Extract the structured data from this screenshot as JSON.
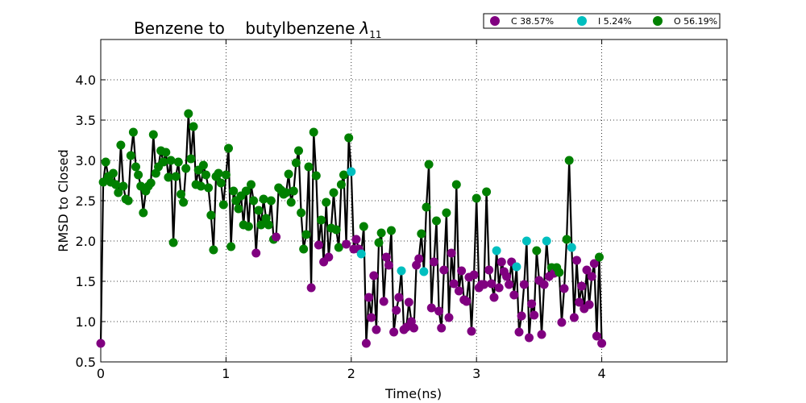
{
  "chart_data": {
    "type": "scatter",
    "title": "Benzene to    butylbenzene",
    "title_symbol": "λ",
    "title_subscript": "11",
    "xlabel": "Time(ns)",
    "ylabel": "RMSD to Closed",
    "xlim": [
      0,
      5
    ],
    "ylim": [
      0.5,
      4.5
    ],
    "xticks": [
      0,
      1,
      2,
      3,
      4
    ],
    "xtick_labels": [
      "0",
      "1",
      "2",
      "3",
      "4"
    ],
    "yticks": [
      0.5,
      1.0,
      1.5,
      2.0,
      2.5,
      3.0,
      3.5,
      4.0
    ],
    "ytick_labels": [
      "0.5",
      "1.0",
      "1.5",
      "2.0",
      "2.5",
      "3.0",
      "3.5",
      "4.0"
    ],
    "grid": true,
    "legend_position": "top-right",
    "line_color": "#000000",
    "categories": [
      {
        "key": "C",
        "label": "C 38.57%",
        "color": "#800080"
      },
      {
        "key": "I",
        "label": "I 5.24%",
        "color": "#00bfbf"
      },
      {
        "key": "O",
        "label": "O 56.19%",
        "color": "#008000"
      }
    ],
    "points": [
      {
        "x": 0.0,
        "y": 0.73,
        "c": "C"
      },
      {
        "x": 0.02,
        "y": 2.73,
        "c": "O"
      },
      {
        "x": 0.04,
        "y": 2.98,
        "c": "O"
      },
      {
        "x": 0.06,
        "y": 2.8,
        "c": "O"
      },
      {
        "x": 0.08,
        "y": 2.73,
        "c": "O"
      },
      {
        "x": 0.1,
        "y": 2.84,
        "c": "O"
      },
      {
        "x": 0.12,
        "y": 2.7,
        "c": "O"
      },
      {
        "x": 0.14,
        "y": 2.6,
        "c": "O"
      },
      {
        "x": 0.16,
        "y": 3.19,
        "c": "O"
      },
      {
        "x": 0.18,
        "y": 2.68,
        "c": "O"
      },
      {
        "x": 0.2,
        "y": 2.52,
        "c": "O"
      },
      {
        "x": 0.22,
        "y": 2.5,
        "c": "O"
      },
      {
        "x": 0.24,
        "y": 3.06,
        "c": "O"
      },
      {
        "x": 0.26,
        "y": 3.35,
        "c": "O"
      },
      {
        "x": 0.28,
        "y": 2.92,
        "c": "O"
      },
      {
        "x": 0.3,
        "y": 2.82,
        "c": "O"
      },
      {
        "x": 0.32,
        "y": 2.68,
        "c": "O"
      },
      {
        "x": 0.34,
        "y": 2.35,
        "c": "O"
      },
      {
        "x": 0.36,
        "y": 2.62,
        "c": "O"
      },
      {
        "x": 0.38,
        "y": 2.68,
        "c": "O"
      },
      {
        "x": 0.4,
        "y": 2.72,
        "c": "O"
      },
      {
        "x": 0.42,
        "y": 3.32,
        "c": "O"
      },
      {
        "x": 0.44,
        "y": 2.84,
        "c": "O"
      },
      {
        "x": 0.46,
        "y": 2.92,
        "c": "O"
      },
      {
        "x": 0.48,
        "y": 3.12,
        "c": "O"
      },
      {
        "x": 0.5,
        "y": 2.98,
        "c": "O"
      },
      {
        "x": 0.52,
        "y": 3.1,
        "c": "O"
      },
      {
        "x": 0.54,
        "y": 2.79,
        "c": "O"
      },
      {
        "x": 0.56,
        "y": 3.0,
        "c": "O"
      },
      {
        "x": 0.58,
        "y": 1.98,
        "c": "O"
      },
      {
        "x": 0.6,
        "y": 2.8,
        "c": "O"
      },
      {
        "x": 0.62,
        "y": 2.98,
        "c": "O"
      },
      {
        "x": 0.64,
        "y": 2.58,
        "c": "O"
      },
      {
        "x": 0.66,
        "y": 2.48,
        "c": "O"
      },
      {
        "x": 0.68,
        "y": 2.9,
        "c": "O"
      },
      {
        "x": 0.7,
        "y": 3.58,
        "c": "O"
      },
      {
        "x": 0.72,
        "y": 3.02,
        "c": "O"
      },
      {
        "x": 0.74,
        "y": 3.42,
        "c": "O"
      },
      {
        "x": 0.76,
        "y": 2.7,
        "c": "O"
      },
      {
        "x": 0.78,
        "y": 2.88,
        "c": "O"
      },
      {
        "x": 0.8,
        "y": 2.68,
        "c": "O"
      },
      {
        "x": 0.82,
        "y": 2.94,
        "c": "O"
      },
      {
        "x": 0.84,
        "y": 2.82,
        "c": "O"
      },
      {
        "x": 0.86,
        "y": 2.66,
        "c": "O"
      },
      {
        "x": 0.88,
        "y": 2.32,
        "c": "O"
      },
      {
        "x": 0.9,
        "y": 1.89,
        "c": "O"
      },
      {
        "x": 0.92,
        "y": 2.8,
        "c": "O"
      },
      {
        "x": 0.94,
        "y": 2.84,
        "c": "O"
      },
      {
        "x": 0.96,
        "y": 2.72,
        "c": "O"
      },
      {
        "x": 0.98,
        "y": 2.45,
        "c": "O"
      },
      {
        "x": 1.0,
        "y": 2.82,
        "c": "O"
      },
      {
        "x": 1.02,
        "y": 3.15,
        "c": "O"
      },
      {
        "x": 1.04,
        "y": 1.93,
        "c": "O"
      },
      {
        "x": 1.06,
        "y": 2.62,
        "c": "O"
      },
      {
        "x": 1.08,
        "y": 2.5,
        "c": "O"
      },
      {
        "x": 1.1,
        "y": 2.4,
        "c": "O"
      },
      {
        "x": 1.12,
        "y": 2.56,
        "c": "O"
      },
      {
        "x": 1.14,
        "y": 2.2,
        "c": "O"
      },
      {
        "x": 1.16,
        "y": 2.62,
        "c": "O"
      },
      {
        "x": 1.18,
        "y": 2.18,
        "c": "O"
      },
      {
        "x": 1.2,
        "y": 2.7,
        "c": "O"
      },
      {
        "x": 1.22,
        "y": 2.5,
        "c": "O"
      },
      {
        "x": 1.24,
        "y": 1.85,
        "c": "C"
      },
      {
        "x": 1.26,
        "y": 2.38,
        "c": "O"
      },
      {
        "x": 1.28,
        "y": 2.2,
        "c": "O"
      },
      {
        "x": 1.3,
        "y": 2.52,
        "c": "O"
      },
      {
        "x": 1.32,
        "y": 2.28,
        "c": "O"
      },
      {
        "x": 1.34,
        "y": 2.2,
        "c": "O"
      },
      {
        "x": 1.36,
        "y": 2.5,
        "c": "O"
      },
      {
        "x": 1.38,
        "y": 2.02,
        "c": "O"
      },
      {
        "x": 1.4,
        "y": 2.05,
        "c": "C"
      },
      {
        "x": 1.42,
        "y": 2.66,
        "c": "O"
      },
      {
        "x": 1.44,
        "y": 2.63,
        "c": "O"
      },
      {
        "x": 1.46,
        "y": 2.58,
        "c": "O"
      },
      {
        "x": 1.48,
        "y": 2.6,
        "c": "O"
      },
      {
        "x": 1.5,
        "y": 2.83,
        "c": "O"
      },
      {
        "x": 1.52,
        "y": 2.48,
        "c": "O"
      },
      {
        "x": 1.54,
        "y": 2.62,
        "c": "O"
      },
      {
        "x": 1.56,
        "y": 2.97,
        "c": "O"
      },
      {
        "x": 1.58,
        "y": 3.12,
        "c": "O"
      },
      {
        "x": 1.6,
        "y": 2.35,
        "c": "O"
      },
      {
        "x": 1.62,
        "y": 1.9,
        "c": "O"
      },
      {
        "x": 1.64,
        "y": 2.08,
        "c": "O"
      },
      {
        "x": 1.66,
        "y": 2.92,
        "c": "O"
      },
      {
        "x": 1.68,
        "y": 1.42,
        "c": "C"
      },
      {
        "x": 1.7,
        "y": 3.35,
        "c": "O"
      },
      {
        "x": 1.72,
        "y": 2.81,
        "c": "O"
      },
      {
        "x": 1.74,
        "y": 1.95,
        "c": "C"
      },
      {
        "x": 1.76,
        "y": 2.26,
        "c": "O"
      },
      {
        "x": 1.78,
        "y": 1.74,
        "c": "C"
      },
      {
        "x": 1.8,
        "y": 2.48,
        "c": "O"
      },
      {
        "x": 1.82,
        "y": 1.8,
        "c": "C"
      },
      {
        "x": 1.84,
        "y": 2.16,
        "c": "O"
      },
      {
        "x": 1.86,
        "y": 2.6,
        "c": "O"
      },
      {
        "x": 1.88,
        "y": 2.14,
        "c": "O"
      },
      {
        "x": 1.9,
        "y": 1.92,
        "c": "O"
      },
      {
        "x": 1.92,
        "y": 2.7,
        "c": "O"
      },
      {
        "x": 1.94,
        "y": 2.82,
        "c": "O"
      },
      {
        "x": 1.96,
        "y": 1.96,
        "c": "C"
      },
      {
        "x": 1.98,
        "y": 3.28,
        "c": "O"
      },
      {
        "x": 2.0,
        "y": 2.86,
        "c": "I"
      },
      {
        "x": 2.02,
        "y": 1.9,
        "c": "C"
      },
      {
        "x": 2.04,
        "y": 2.02,
        "c": "C"
      },
      {
        "x": 2.06,
        "y": 1.9,
        "c": "C"
      },
      {
        "x": 2.08,
        "y": 1.84,
        "c": "I"
      },
      {
        "x": 2.1,
        "y": 2.18,
        "c": "O"
      },
      {
        "x": 2.12,
        "y": 0.73,
        "c": "C"
      },
      {
        "x": 2.14,
        "y": 1.3,
        "c": "C"
      },
      {
        "x": 2.16,
        "y": 1.05,
        "c": "C"
      },
      {
        "x": 2.18,
        "y": 1.57,
        "c": "C"
      },
      {
        "x": 2.2,
        "y": 0.9,
        "c": "C"
      },
      {
        "x": 2.22,
        "y": 1.98,
        "c": "O"
      },
      {
        "x": 2.24,
        "y": 2.1,
        "c": "O"
      },
      {
        "x": 2.26,
        "y": 1.25,
        "c": "C"
      },
      {
        "x": 2.28,
        "y": 1.8,
        "c": "C"
      },
      {
        "x": 2.3,
        "y": 1.7,
        "c": "C"
      },
      {
        "x": 2.32,
        "y": 2.13,
        "c": "O"
      },
      {
        "x": 2.34,
        "y": 0.87,
        "c": "C"
      },
      {
        "x": 2.36,
        "y": 1.14,
        "c": "C"
      },
      {
        "x": 2.38,
        "y": 1.3,
        "c": "C"
      },
      {
        "x": 2.4,
        "y": 1.63,
        "c": "I"
      },
      {
        "x": 2.42,
        "y": 0.9,
        "c": "C"
      },
      {
        "x": 2.44,
        "y": 0.93,
        "c": "C"
      },
      {
        "x": 2.46,
        "y": 1.24,
        "c": "C"
      },
      {
        "x": 2.48,
        "y": 1.0,
        "c": "C"
      },
      {
        "x": 2.5,
        "y": 0.92,
        "c": "C"
      },
      {
        "x": 2.52,
        "y": 1.7,
        "c": "C"
      },
      {
        "x": 2.54,
        "y": 1.78,
        "c": "C"
      },
      {
        "x": 2.56,
        "y": 2.09,
        "c": "O"
      },
      {
        "x": 2.58,
        "y": 1.62,
        "c": "I"
      },
      {
        "x": 2.6,
        "y": 2.42,
        "c": "O"
      },
      {
        "x": 2.62,
        "y": 2.95,
        "c": "O"
      },
      {
        "x": 2.64,
        "y": 1.17,
        "c": "C"
      },
      {
        "x": 2.66,
        "y": 1.74,
        "c": "C"
      },
      {
        "x": 2.68,
        "y": 2.25,
        "c": "O"
      },
      {
        "x": 2.7,
        "y": 1.13,
        "c": "C"
      },
      {
        "x": 2.72,
        "y": 0.92,
        "c": "C"
      },
      {
        "x": 2.74,
        "y": 1.64,
        "c": "C"
      },
      {
        "x": 2.76,
        "y": 2.35,
        "c": "O"
      },
      {
        "x": 2.78,
        "y": 1.05,
        "c": "C"
      },
      {
        "x": 2.8,
        "y": 1.85,
        "c": "C"
      },
      {
        "x": 2.82,
        "y": 1.47,
        "c": "C"
      },
      {
        "x": 2.84,
        "y": 2.7,
        "c": "O"
      },
      {
        "x": 2.86,
        "y": 1.38,
        "c": "C"
      },
      {
        "x": 2.88,
        "y": 1.63,
        "c": "C"
      },
      {
        "x": 2.9,
        "y": 1.27,
        "c": "C"
      },
      {
        "x": 2.92,
        "y": 1.25,
        "c": "C"
      },
      {
        "x": 2.94,
        "y": 1.55,
        "c": "C"
      },
      {
        "x": 2.96,
        "y": 0.88,
        "c": "C"
      },
      {
        "x": 2.98,
        "y": 1.58,
        "c": "C"
      },
      {
        "x": 3.0,
        "y": 2.53,
        "c": "O"
      },
      {
        "x": 3.02,
        "y": 1.42,
        "c": "C"
      },
      {
        "x": 3.04,
        "y": 1.46,
        "c": "C"
      },
      {
        "x": 3.06,
        "y": 1.46,
        "c": "C"
      },
      {
        "x": 3.08,
        "y": 2.61,
        "c": "O"
      },
      {
        "x": 3.1,
        "y": 1.64,
        "c": "C"
      },
      {
        "x": 3.12,
        "y": 1.47,
        "c": "C"
      },
      {
        "x": 3.14,
        "y": 1.3,
        "c": "C"
      },
      {
        "x": 3.16,
        "y": 1.88,
        "c": "I"
      },
      {
        "x": 3.18,
        "y": 1.42,
        "c": "C"
      },
      {
        "x": 3.2,
        "y": 1.74,
        "c": "C"
      },
      {
        "x": 3.22,
        "y": 1.62,
        "c": "C"
      },
      {
        "x": 3.24,
        "y": 1.56,
        "c": "C"
      },
      {
        "x": 3.26,
        "y": 1.46,
        "c": "C"
      },
      {
        "x": 3.28,
        "y": 1.74,
        "c": "C"
      },
      {
        "x": 3.3,
        "y": 1.33,
        "c": "C"
      },
      {
        "x": 3.32,
        "y": 1.68,
        "c": "I"
      },
      {
        "x": 3.34,
        "y": 0.87,
        "c": "C"
      },
      {
        "x": 3.36,
        "y": 1.07,
        "c": "C"
      },
      {
        "x": 3.38,
        "y": 1.46,
        "c": "C"
      },
      {
        "x": 3.4,
        "y": 2.0,
        "c": "I"
      },
      {
        "x": 3.42,
        "y": 0.8,
        "c": "C"
      },
      {
        "x": 3.44,
        "y": 1.22,
        "c": "C"
      },
      {
        "x": 3.46,
        "y": 1.08,
        "c": "C"
      },
      {
        "x": 3.48,
        "y": 1.88,
        "c": "O"
      },
      {
        "x": 3.5,
        "y": 1.51,
        "c": "C"
      },
      {
        "x": 3.52,
        "y": 0.84,
        "c": "C"
      },
      {
        "x": 3.54,
        "y": 1.46,
        "c": "C"
      },
      {
        "x": 3.56,
        "y": 2.0,
        "c": "I"
      },
      {
        "x": 3.58,
        "y": 1.56,
        "c": "C"
      },
      {
        "x": 3.6,
        "y": 1.67,
        "c": "O"
      },
      {
        "x": 3.62,
        "y": 1.6,
        "c": "C"
      },
      {
        "x": 3.64,
        "y": 1.67,
        "c": "O"
      },
      {
        "x": 3.66,
        "y": 1.61,
        "c": "O"
      },
      {
        "x": 3.68,
        "y": 0.99,
        "c": "C"
      },
      {
        "x": 3.7,
        "y": 1.41,
        "c": "C"
      },
      {
        "x": 3.72,
        "y": 2.02,
        "c": "O"
      },
      {
        "x": 3.74,
        "y": 3.0,
        "c": "O"
      },
      {
        "x": 3.76,
        "y": 1.92,
        "c": "I"
      },
      {
        "x": 3.78,
        "y": 1.05,
        "c": "C"
      },
      {
        "x": 3.8,
        "y": 1.76,
        "c": "C"
      },
      {
        "x": 3.82,
        "y": 1.24,
        "c": "C"
      },
      {
        "x": 3.84,
        "y": 1.44,
        "c": "C"
      },
      {
        "x": 3.86,
        "y": 1.16,
        "c": "C"
      },
      {
        "x": 3.88,
        "y": 1.64,
        "c": "C"
      },
      {
        "x": 3.9,
        "y": 1.21,
        "c": "C"
      },
      {
        "x": 3.92,
        "y": 1.56,
        "c": "C"
      },
      {
        "x": 3.94,
        "y": 1.72,
        "c": "C"
      },
      {
        "x": 3.96,
        "y": 0.82,
        "c": "C"
      },
      {
        "x": 3.98,
        "y": 1.8,
        "c": "O"
      },
      {
        "x": 4.0,
        "y": 0.73,
        "c": "C"
      }
    ]
  }
}
